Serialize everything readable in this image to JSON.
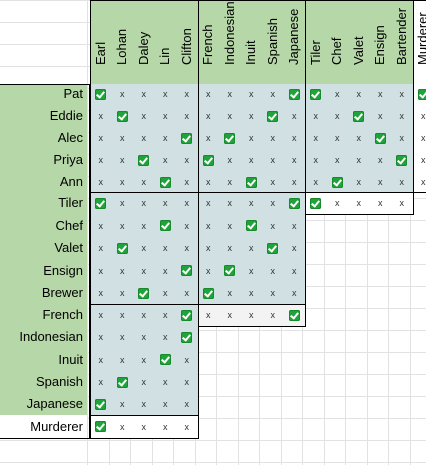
{
  "columns": [
    "Earl",
    "Lohan",
    "Daley",
    "Lin",
    "Clifton",
    "French",
    "Indonesian",
    "Inuit",
    "Spanish",
    "Japanese",
    "Tiler",
    "Chef",
    "Valet",
    "Ensign",
    "Bartender",
    "Murderer"
  ],
  "rows": [
    "Pat",
    "Eddie",
    "Alec",
    "Priya",
    "Ann",
    "Tiler",
    "Chef",
    "Valet",
    "Ensign",
    "Brewer",
    "French",
    "Indonesian",
    "Inuit",
    "Spanish",
    "Japanese",
    "Murderer"
  ],
  "marks": {
    "check": "✓",
    "cross": "x"
  },
  "grid": [
    [
      "C",
      "x",
      "x",
      "x",
      "x",
      "x",
      "x",
      "x",
      "x",
      "C",
      "C",
      "x",
      "x",
      "x",
      "x",
      "C"
    ],
    [
      "x",
      "C",
      "x",
      "x",
      "x",
      "x",
      "x",
      "x",
      "C",
      "x",
      "x",
      "x",
      "C",
      "x",
      "x",
      "x"
    ],
    [
      "x",
      "x",
      "x",
      "x",
      "C",
      "x",
      "C",
      "x",
      "x",
      "x",
      "x",
      "x",
      "x",
      "C",
      "x",
      "x"
    ],
    [
      "x",
      "x",
      "C",
      "x",
      "x",
      "C",
      "x",
      "x",
      "x",
      "x",
      "x",
      "x",
      "x",
      "x",
      "C",
      "x"
    ],
    [
      "x",
      "x",
      "x",
      "C",
      "x",
      "x",
      "x",
      "C",
      "x",
      "x",
      "x",
      "C",
      "x",
      "x",
      "x",
      "x"
    ],
    [
      "C",
      "x",
      "x",
      "x",
      "x",
      "x",
      "x",
      "x",
      "x",
      "C",
      "C",
      "x",
      "x",
      "x",
      "x"
    ],
    [
      "x",
      "x",
      "x",
      "C",
      "x",
      "x",
      "x",
      "C",
      "x",
      "x"
    ],
    [
      "x",
      "C",
      "x",
      "x",
      "x",
      "x",
      "x",
      "x",
      "C",
      "x"
    ],
    [
      "x",
      "x",
      "x",
      "x",
      "C",
      "x",
      "C",
      "x",
      "x",
      "x"
    ],
    [
      "x",
      "x",
      "C",
      "x",
      "x",
      "C",
      "x",
      "x",
      "x",
      "x"
    ],
    [
      "x",
      "x",
      "x",
      "x",
      "C",
      "x",
      "x",
      "x",
      "x",
      "C"
    ],
    [
      "x",
      "x",
      "x",
      "x",
      "C"
    ],
    [
      "x",
      "x",
      "x",
      "C",
      "x"
    ],
    [
      "x",
      "C",
      "x",
      "x",
      "x"
    ],
    [
      "C",
      "x",
      "x",
      "x",
      "x"
    ],
    [
      "C",
      "x",
      "x",
      "x",
      "x"
    ]
  ],
  "colors": {
    "header_green": "#b6d7a8",
    "cell_blue": "#d0e0e3",
    "check_green": "#21a33b",
    "gridline": "#e2e2e2"
  }
}
